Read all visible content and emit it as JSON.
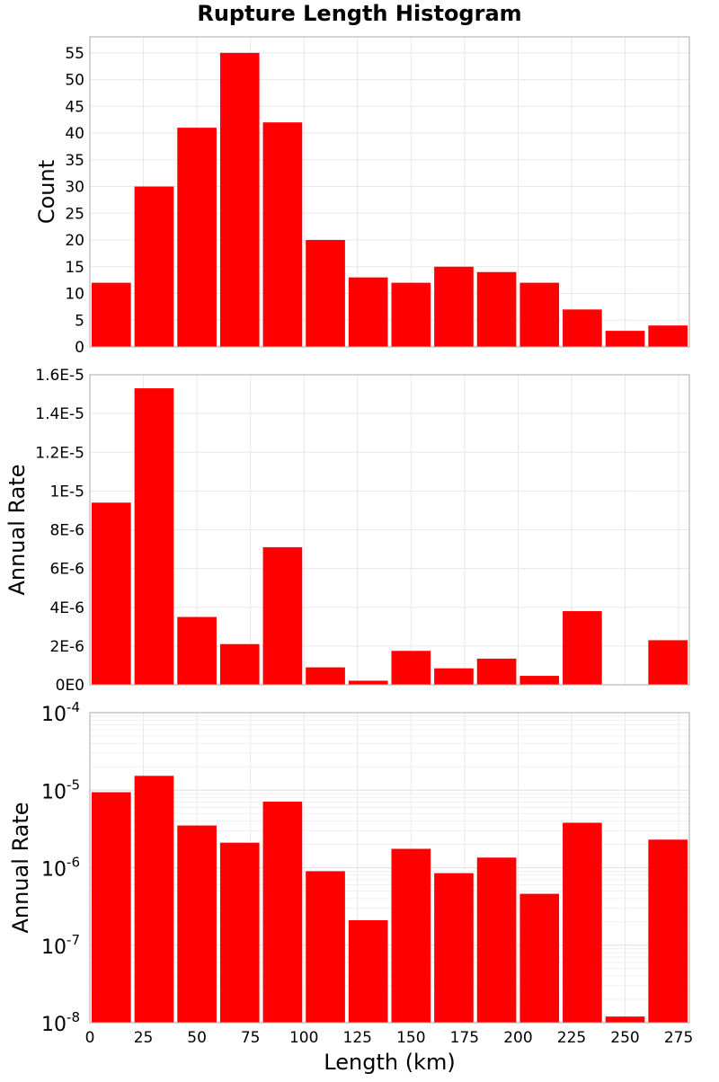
{
  "chart_data": [
    {
      "type": "bar",
      "title": "Rupture Length Histogram",
      "ylabel": "Count",
      "xlabel": "",
      "x": [
        10,
        30,
        50,
        70,
        90,
        110,
        130,
        150,
        170,
        190,
        210,
        230,
        250,
        270
      ],
      "bin_width": 20,
      "values": [
        12,
        30,
        41,
        55,
        42,
        20,
        13,
        12,
        15,
        14,
        12,
        7,
        3,
        4
      ],
      "xlim": [
        0,
        280
      ],
      "ylim": [
        0,
        58
      ],
      "yticks": [
        0,
        5,
        10,
        15,
        20,
        25,
        30,
        35,
        40,
        45,
        50,
        55
      ],
      "ytick_labels": [
        "0",
        "5",
        "10",
        "15",
        "20",
        "25",
        "30",
        "35",
        "40",
        "45",
        "50",
        "55"
      ],
      "bar_color": "#ff0000",
      "grid": true
    },
    {
      "type": "bar",
      "ylabel": "Annual Rate",
      "xlabel": "",
      "x": [
        10,
        30,
        50,
        70,
        90,
        110,
        130,
        150,
        170,
        190,
        210,
        230,
        250,
        270
      ],
      "bin_width": 20,
      "values": [
        9.4e-06,
        1.53e-05,
        3.5e-06,
        2.1e-06,
        7.1e-06,
        9e-07,
        2.1e-07,
        1.75e-06,
        8.5e-07,
        1.35e-06,
        4.6e-07,
        3.8e-06,
        1.2e-08,
        2.3e-06
      ],
      "xlim": [
        0,
        280
      ],
      "ylim": [
        0,
        1.6e-05
      ],
      "yticks": [
        0,
        2e-06,
        4e-06,
        6e-06,
        8e-06,
        1e-05,
        1.2e-05,
        1.4e-05,
        1.6e-05
      ],
      "ytick_labels": [
        "0E0",
        "2E-6",
        "4E-6",
        "6E-6",
        "8E-6",
        "1E-5",
        "1.2E-5",
        "1.4E-5",
        "1.6E-5"
      ],
      "bar_color": "#ff0000",
      "grid": true
    },
    {
      "type": "bar",
      "ylabel": "Annual Rate",
      "xlabel": "Length (km)",
      "yscale": "log",
      "x": [
        10,
        30,
        50,
        70,
        90,
        110,
        130,
        150,
        170,
        190,
        210,
        230,
        250,
        270
      ],
      "bin_width": 20,
      "values": [
        9.4e-06,
        1.53e-05,
        3.5e-06,
        2.1e-06,
        7.1e-06,
        9e-07,
        2.1e-07,
        1.75e-06,
        8.5e-07,
        1.35e-06,
        4.6e-07,
        3.8e-06,
        1.2e-08,
        2.3e-06
      ],
      "xlim": [
        0,
        280
      ],
      "ylim": [
        1e-08,
        0.0001
      ],
      "xticks": [
        0,
        25,
        50,
        75,
        100,
        125,
        150,
        175,
        200,
        225,
        250,
        275
      ],
      "xtick_labels": [
        "0",
        "25",
        "50",
        "75",
        "100",
        "125",
        "150",
        "175",
        "200",
        "225",
        "250",
        "275"
      ],
      "ytick_labels": [
        {
          "base": "10",
          "exp": "-8"
        },
        {
          "base": "10",
          "exp": "-7"
        },
        {
          "base": "10",
          "exp": "-6"
        },
        {
          "base": "10",
          "exp": "-5"
        },
        {
          "base": "10",
          "exp": "-4"
        }
      ],
      "bar_color": "#ff0000",
      "grid": true
    }
  ]
}
